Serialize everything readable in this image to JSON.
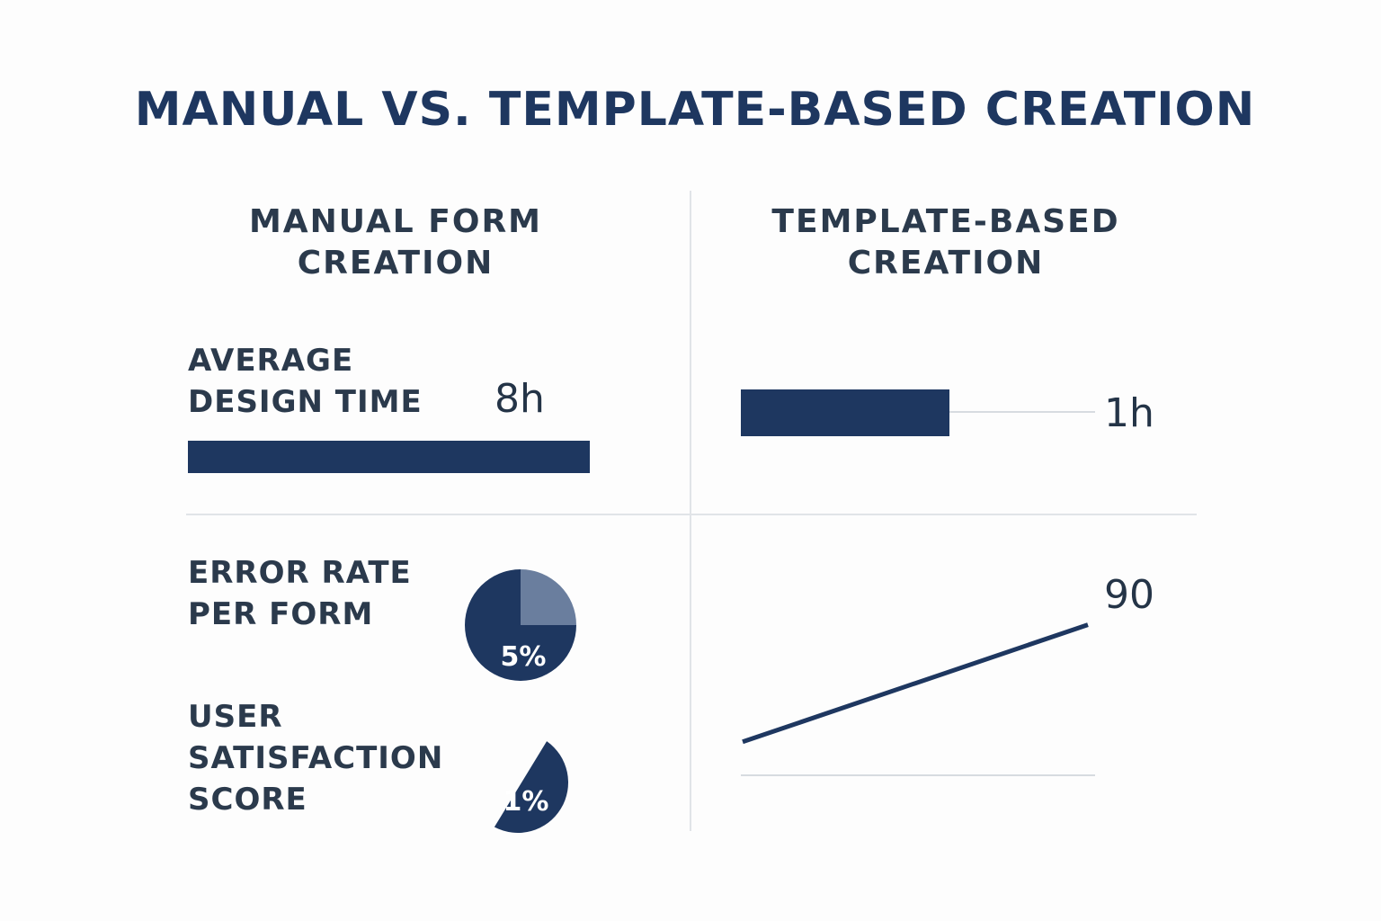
{
  "title": "MANUAL VS. TEMPLATE-BASED CREATION",
  "columns": {
    "manual": "MANUAL FORM\nCREATION",
    "template": "TEMPLATE-BASED\nCREATION"
  },
  "metrics": {
    "design_time_label": "AVERAGE\nDESIGN TIME",
    "error_rate_label": "ERROR RATE\nPER FORM",
    "satisfaction_label": "USER\nSATISFACTION\nSCORE"
  },
  "colors": {
    "primary": "#1e3760",
    "pie_light": "#6a7e9e",
    "divider": "#e1e4e8",
    "title": "#1e3760"
  },
  "chart_data": [
    {
      "type": "bar",
      "orientation": "horizontal",
      "panel": "manual-design-time",
      "label": "8h",
      "value": 8,
      "unit": "h"
    },
    {
      "type": "bar",
      "orientation": "horizontal",
      "panel": "template-design-time",
      "label": "1h",
      "value": 1,
      "unit": "h"
    },
    {
      "type": "pie",
      "panel": "manual-error-rate",
      "label": "5%",
      "slices": [
        {
          "value": 75,
          "color": "#1e3760"
        },
        {
          "value": 25,
          "color": "#6a7e9e"
        }
      ]
    },
    {
      "type": "pie",
      "panel": "manual-satisfaction",
      "label": "1%",
      "slices": [
        {
          "value": 48,
          "color": "#1e3760"
        }
      ]
    },
    {
      "type": "line",
      "panel": "template-trend",
      "end_label": "90",
      "x": [
        0,
        1,
        2
      ],
      "y": [
        20,
        55,
        90
      ],
      "ylim": [
        0,
        100
      ]
    }
  ]
}
